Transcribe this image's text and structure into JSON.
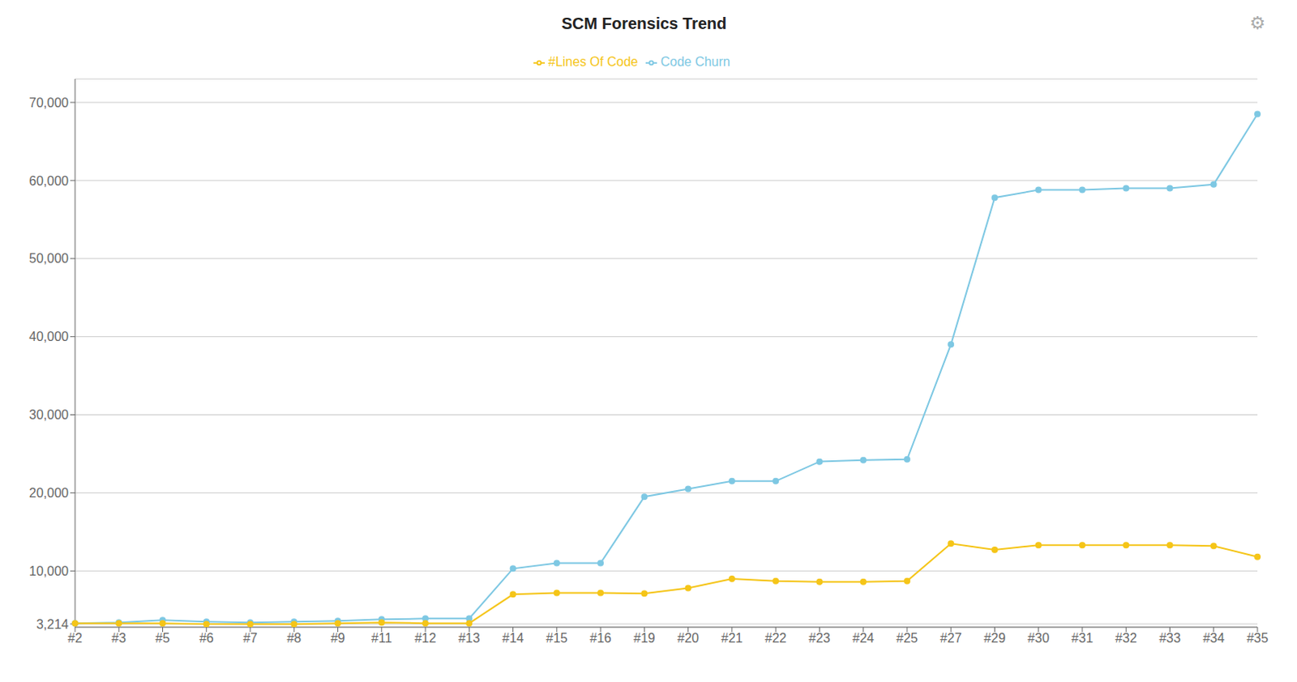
{
  "chart_data": {
    "type": "line",
    "title": "SCM Forensics Trend",
    "categories": [
      "#2",
      "#3",
      "#5",
      "#6",
      "#7",
      "#8",
      "#9",
      "#11",
      "#12",
      "#13",
      "#14",
      "#15",
      "#16",
      "#19",
      "#20",
      "#21",
      "#22",
      "#23",
      "#24",
      "#25",
      "#27",
      "#29",
      "#30",
      "#31",
      "#32",
      "#33",
      "#34",
      "#35"
    ],
    "series": [
      {
        "name": "Code Churn",
        "color": "#7ec8e3",
        "marker": "circle",
        "values": [
          3300,
          3400,
          3700,
          3500,
          3400,
          3500,
          3600,
          3800,
          3900,
          3900,
          10300,
          11000,
          11000,
          19500,
          20500,
          21500,
          21500,
          24000,
          24200,
          24300,
          39000,
          57800,
          58800,
          58800,
          59000,
          59000,
          59500,
          68500
        ]
      },
      {
        "name": "#Lines Of Code",
        "color": "#f5c518",
        "marker": "circle",
        "values": [
          3300,
          3300,
          3300,
          3200,
          3200,
          3200,
          3300,
          3400,
          3300,
          3300,
          7000,
          7200,
          7200,
          7100,
          7800,
          9000,
          8700,
          8600,
          8600,
          8700,
          13500,
          12700,
          13300,
          13300,
          13300,
          13300,
          13200,
          11800
        ]
      }
    ],
    "ylim": [
      2800,
      73000
    ],
    "yticks": [
      {
        "value": 3214,
        "label": "3,214"
      },
      {
        "value": 10000,
        "label": "10,000"
      },
      {
        "value": 20000,
        "label": "20,000"
      },
      {
        "value": 30000,
        "label": "30,000"
      },
      {
        "value": 40000,
        "label": "40,000"
      },
      {
        "value": 50000,
        "label": "50,000"
      },
      {
        "value": 60000,
        "label": "60,000"
      },
      {
        "value": 70000,
        "label": "70,000"
      }
    ],
    "grid": "y",
    "legend": "top",
    "annotations": [
      "⚙"
    ]
  }
}
